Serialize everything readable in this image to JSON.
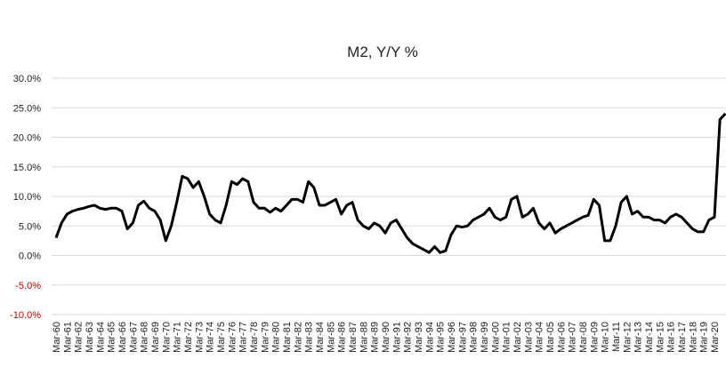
{
  "chart_data": {
    "type": "line",
    "title": "M2, Y/Y %",
    "categories": [
      "Mar-60",
      null,
      "Mar-61",
      null,
      "Mar-62",
      null,
      "Mar-63",
      null,
      "Mar-64",
      null,
      "Mar-65",
      null,
      "Mar-66",
      null,
      "Mar-67",
      null,
      "Mar-68",
      null,
      "Mar-69",
      null,
      "Mar-70",
      null,
      "Mar-71",
      null,
      "Mar-72",
      null,
      "Mar-73",
      null,
      "Mar-74",
      null,
      "Mar-75",
      null,
      "Mar-76",
      null,
      "Mar-77",
      null,
      "Mar-78",
      null,
      "Mar-79",
      null,
      "Mar-80",
      null,
      "Mar-81",
      null,
      "Mar-82",
      null,
      "Mar-83",
      null,
      "Mar-84",
      null,
      "Mar-85",
      null,
      "Mar-86",
      null,
      "Mar-87",
      null,
      "Mar-88",
      null,
      "Mar-89",
      null,
      "Mar-90",
      null,
      "Mar-91",
      null,
      "Mar-92",
      null,
      "Mar-93",
      null,
      "Mar-94",
      null,
      "Mar-95",
      null,
      "Mar-96",
      null,
      "Mar-97",
      null,
      "Mar-98",
      null,
      "Mar-99",
      null,
      "Mar-00",
      null,
      "Mar-01",
      null,
      "Mar-02",
      null,
      "Mar-03",
      null,
      "Mar-04",
      null,
      "Mar-05",
      null,
      "Mar-06",
      null,
      "Mar-07",
      null,
      "Mar-08",
      null,
      "Mar-09",
      null,
      "Mar-10",
      null,
      "Mar-11",
      null,
      "Mar-12",
      null,
      "Mar-13",
      null,
      "Mar-14",
      null,
      "Mar-15",
      null,
      "Mar-16",
      null,
      "Mar-17",
      null,
      "Mar-18",
      null,
      "Mar-19",
      null,
      "Mar-20",
      null,
      null
    ],
    "values": [
      3,
      5.5,
      7,
      7.5,
      7.8,
      8,
      8.3,
      8.5,
      8,
      7.8,
      8,
      8,
      7.5,
      4.5,
      5.5,
      8.5,
      9.2,
      8,
      7.5,
      6,
      2.5,
      5,
      9,
      13.4,
      13,
      11.5,
      12.5,
      10,
      7,
      6,
      5.5,
      8.5,
      12.5,
      12,
      13,
      12.5,
      9,
      8,
      8,
      7.3,
      8,
      7.5,
      8.5,
      9.5,
      9.5,
      9,
      12.5,
      11.5,
      8.5,
      8.5,
      9,
      9.5,
      7,
      8.5,
      9,
      6,
      5,
      4.5,
      5.5,
      5,
      3.8,
      5.5,
      6,
      4.5,
      3,
      2,
      1.5,
      1,
      0.5,
      1.5,
      0.5,
      0.8,
      3.5,
      5,
      4.8,
      5,
      6,
      6.5,
      7,
      8,
      6.5,
      6,
      6.5,
      9.5,
      10,
      6.5,
      7,
      8,
      5.5,
      4.5,
      5.5,
      3.8,
      4.5,
      5,
      5.5,
      6,
      6.5,
      6.8,
      9.5,
      8.5,
      2.5,
      2.5,
      5,
      9,
      10,
      7,
      7.5,
      6.5,
      6.5,
      6,
      6,
      5.5,
      6.5,
      7,
      6.5,
      5.5,
      4.5,
      4,
      4,
      6,
      6.5,
      23,
      24
    ],
    "color": "#000000",
    "ylim": [
      -10,
      30
    ],
    "yticks": [
      {
        "value": -10,
        "label": "-10.0%"
      },
      {
        "value": -5,
        "label": "-5.0%"
      },
      {
        "value": 0,
        "label": "0.0%"
      },
      {
        "value": 5,
        "label": "5.0%"
      },
      {
        "value": 10,
        "label": "10.0%"
      },
      {
        "value": 15,
        "label": "15.0%"
      },
      {
        "value": 20,
        "label": "20.0%"
      },
      {
        "value": 25,
        "label": "25.0%"
      },
      {
        "value": 30,
        "label": "30.0%"
      }
    ],
    "negative_tick_color": "#c00000",
    "grid": true
  }
}
